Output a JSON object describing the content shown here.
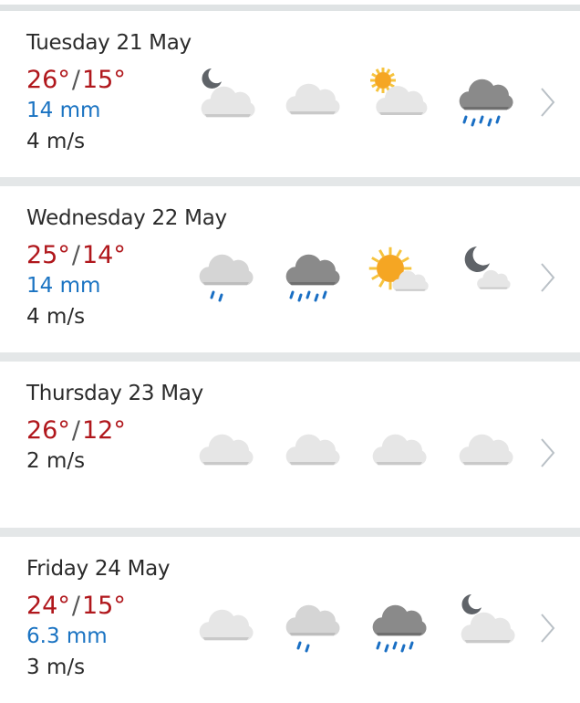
{
  "days": [
    {
      "title": "Tuesday 21 May",
      "high": "26°",
      "low": "15°",
      "precip": "14 mm",
      "wind": "4 m/s",
      "icons": [
        "moon-cloud-icon",
        "cloud-icon",
        "sun-cloud-icon",
        "heavy-rain-icon"
      ]
    },
    {
      "title": "Wednesday 22 May",
      "high": "25°",
      "low": "14°",
      "precip": "14 mm",
      "wind": "4 m/s",
      "icons": [
        "light-rain-icon",
        "heavy-rain-icon",
        "sun-small-cloud-icon",
        "moon-small-cloud-icon"
      ]
    },
    {
      "title": "Thursday 23 May",
      "high": "26°",
      "low": "12°",
      "wind": "2 m/s",
      "icons": [
        "cloud-icon",
        "cloud-icon",
        "cloud-icon",
        "cloud-icon"
      ]
    },
    {
      "title": "Friday 24 May",
      "high": "24°",
      "low": "15°",
      "precip": "6.3 mm",
      "wind": "3 m/s",
      "icons": [
        "cloud-icon",
        "light-rain-icon",
        "heavy-rain-icon",
        "moon-cloud-icon"
      ]
    }
  ],
  "separator": "/",
  "colors": {
    "temperature": "#b0171c",
    "precipitation": "#1a73c2",
    "text": "#2b2b2b"
  }
}
